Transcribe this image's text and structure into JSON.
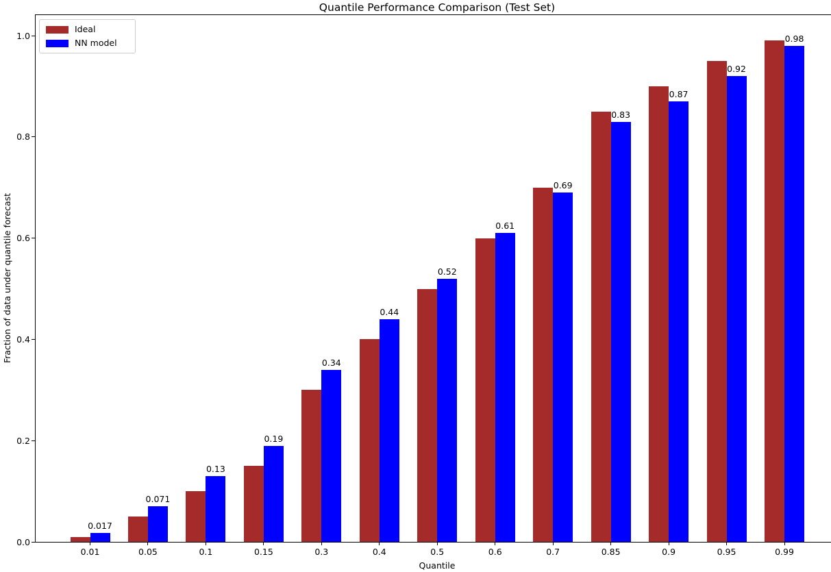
{
  "chart_data": {
    "type": "bar",
    "title": "Quantile Performance Comparison (Test Set)",
    "xlabel": "Quantile",
    "ylabel": "Fraction of data under quantile forecast",
    "categories": [
      "0.01",
      "0.05",
      "0.1",
      "0.15",
      "0.3",
      "0.4",
      "0.5",
      "0.6",
      "0.7",
      "0.85",
      "0.9",
      "0.95",
      "0.99"
    ],
    "series": [
      {
        "name": "Ideal",
        "color": "#A52A2A",
        "values": [
          0.01,
          0.05,
          0.1,
          0.15,
          0.3,
          0.4,
          0.5,
          0.6,
          0.7,
          0.85,
          0.9,
          0.95,
          0.99
        ]
      },
      {
        "name": "NN model",
        "color": "#0000FF",
        "values": [
          0.017,
          0.071,
          0.13,
          0.19,
          0.34,
          0.44,
          0.52,
          0.61,
          0.69,
          0.83,
          0.87,
          0.92,
          0.98
        ],
        "bar_labels": [
          "0.017",
          "0.071",
          "0.13",
          "0.19",
          "0.34",
          "0.44",
          "0.52",
          "0.61",
          "0.69",
          "0.83",
          "0.87",
          "0.92",
          "0.98"
        ]
      }
    ],
    "ylim": [
      0.0,
      1.043
    ],
    "yticks": [
      "0.0",
      "0.2",
      "0.4",
      "0.6",
      "0.8",
      "1.0"
    ],
    "legend_position": "upper left",
    "grid": false,
    "bar_label_color": "#000000",
    "axis_color": "#000000"
  }
}
